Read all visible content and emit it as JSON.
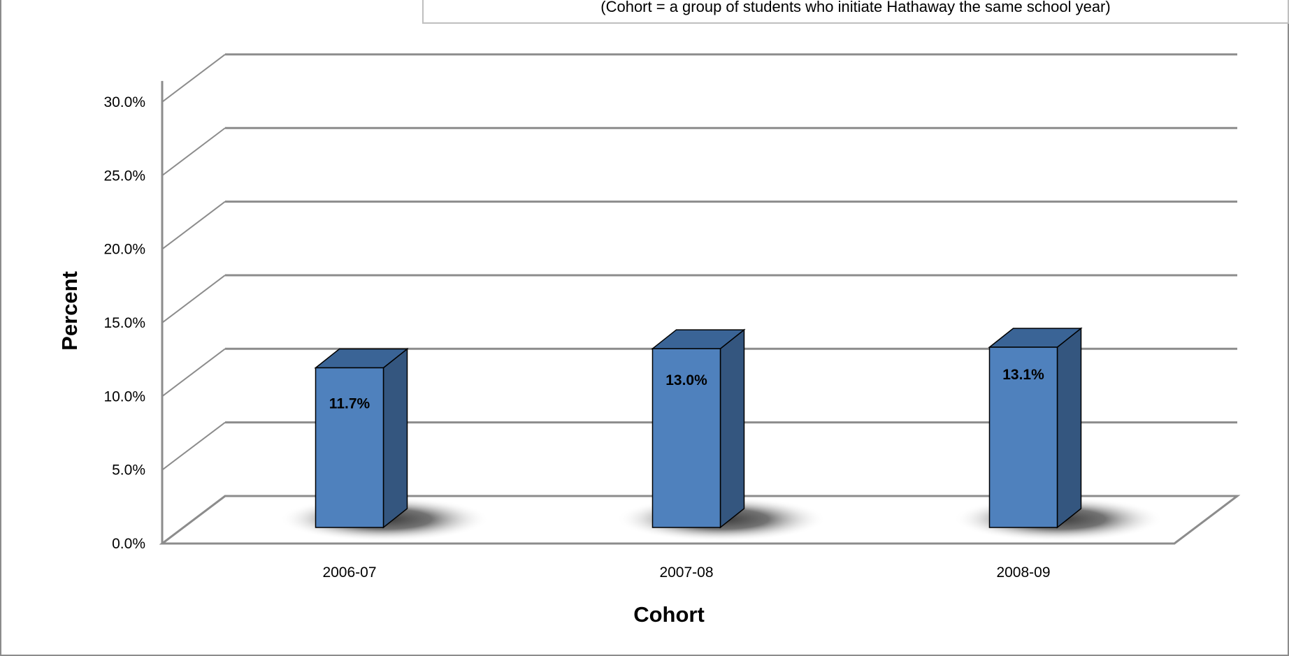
{
  "subtitle": "(Cohort = a group of students who initiate Hathaway the same school year)",
  "chart_data": {
    "type": "bar",
    "subtitle": "(Cohort = a group of students who initiate Hathaway the same school year)",
    "xlabel": "Cohort",
    "ylabel": "Percent",
    "categories": [
      "2006-07",
      "2007-08",
      "2008-09"
    ],
    "values": [
      11.7,
      13.0,
      13.1
    ],
    "data_labels": [
      "11.7%",
      "13.0%",
      "13.1%"
    ],
    "ylim": [
      0,
      30
    ],
    "y_ticks": [
      0,
      5,
      10,
      15,
      20,
      25,
      30
    ],
    "y_tick_labels": [
      "0.0%",
      "5.0%",
      "10.0%",
      "15.0%",
      "20.0%",
      "25.0%",
      "30.0%"
    ],
    "grid": true,
    "style": "3d-column",
    "colors": {
      "bar_front": "#4f81bd",
      "bar_side": "#34567f",
      "bar_top": "#3a6496",
      "grid": "#8c8c8c"
    }
  }
}
